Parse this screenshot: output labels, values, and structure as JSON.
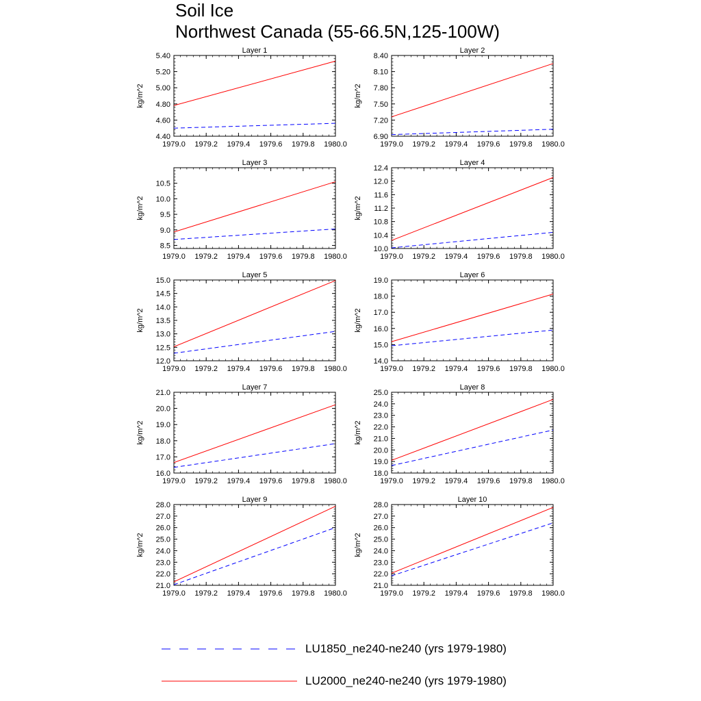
{
  "figure": {
    "title_line1": "Soil Ice",
    "title_line2": "Northwest Canada (55-66.5N,125-100W)"
  },
  "legend": [
    {
      "label": "LU1850_ne240-ne240 (yrs 1979-1980)",
      "color": "#0000ff",
      "dash": "dashed"
    },
    {
      "label": "LU2000_ne240-ne240 (yrs 1979-1980)",
      "color": "#ff0000",
      "dash": "solid"
    }
  ],
  "chart_data": [
    {
      "type": "line",
      "title": "Layer 1",
      "ylabel": "kg/m^2",
      "xlim": [
        1979.0,
        1980.0
      ],
      "ylim": [
        4.4,
        5.4
      ],
      "xticks": [
        "1979.0",
        "1979.2",
        "1979.4",
        "1979.6",
        "1979.8",
        "1980.0"
      ],
      "yticks": [
        "4.40",
        "4.60",
        "4.80",
        "5.00",
        "5.20",
        "5.40"
      ],
      "x": [
        1979.0,
        1980.0
      ],
      "series": [
        {
          "values": [
            4.5,
            4.56
          ],
          "color": "#0000ff",
          "dash": "dashed"
        },
        {
          "values": [
            4.78,
            5.33
          ],
          "color": "#ff0000",
          "dash": "solid"
        }
      ]
    },
    {
      "type": "line",
      "title": "Layer 2",
      "ylabel": "kg/m^2",
      "xlim": [
        1979.0,
        1980.0
      ],
      "ylim": [
        6.9,
        8.4
      ],
      "xticks": [
        "1979.0",
        "1979.2",
        "1979.4",
        "1979.6",
        "1979.8",
        "1980.0"
      ],
      "yticks": [
        "6.90",
        "7.20",
        "7.50",
        "7.80",
        "8.10",
        "8.40"
      ],
      "x": [
        1979.0,
        1980.0
      ],
      "series": [
        {
          "values": [
            6.93,
            7.03
          ],
          "color": "#0000ff",
          "dash": "dashed"
        },
        {
          "values": [
            7.26,
            8.25
          ],
          "color": "#ff0000",
          "dash": "solid"
        }
      ]
    },
    {
      "type": "line",
      "title": "Layer 3",
      "ylabel": "kg/m^2",
      "xlim": [
        1979.0,
        1980.0
      ],
      "ylim": [
        8.4,
        11.0
      ],
      "xticks": [
        "1979.0",
        "1979.2",
        "1979.4",
        "1979.6",
        "1979.8",
        "1980.0"
      ],
      "yticks": [
        "8.5",
        "9.0",
        "9.5",
        "10.0",
        "10.5"
      ],
      "x": [
        1979.0,
        1980.0
      ],
      "series": [
        {
          "values": [
            8.69,
            9.03
          ],
          "color": "#0000ff",
          "dash": "dashed"
        },
        {
          "values": [
            8.93,
            10.55
          ],
          "color": "#ff0000",
          "dash": "solid"
        }
      ]
    },
    {
      "type": "line",
      "title": "Layer 4",
      "ylabel": "kg/m^2",
      "xlim": [
        1979.0,
        1980.0
      ],
      "ylim": [
        10.0,
        12.4
      ],
      "xticks": [
        "1979.0",
        "1979.2",
        "1979.4",
        "1979.6",
        "1979.8",
        "1980.0"
      ],
      "yticks": [
        "10.0",
        "10.4",
        "10.8",
        "11.2",
        "11.6",
        "12.0",
        "12.4"
      ],
      "x": [
        1979.0,
        1980.0
      ],
      "series": [
        {
          "values": [
            10.02,
            10.48
          ],
          "color": "#0000ff",
          "dash": "dashed"
        },
        {
          "values": [
            10.24,
            12.11
          ],
          "color": "#ff0000",
          "dash": "solid"
        }
      ]
    },
    {
      "type": "line",
      "title": "Layer 5",
      "ylabel": "kg/m^2",
      "xlim": [
        1979.0,
        1980.0
      ],
      "ylim": [
        12.0,
        15.0
      ],
      "xticks": [
        "1979.0",
        "1979.2",
        "1979.4",
        "1979.6",
        "1979.8",
        "1980.0"
      ],
      "yticks": [
        "12.0",
        "12.5",
        "13.0",
        "13.5",
        "14.0",
        "14.5",
        "15.0"
      ],
      "x": [
        1979.0,
        1980.0
      ],
      "series": [
        {
          "values": [
            12.28,
            13.09
          ],
          "color": "#0000ff",
          "dash": "dashed"
        },
        {
          "values": [
            12.52,
            14.98
          ],
          "color": "#ff0000",
          "dash": "solid"
        }
      ]
    },
    {
      "type": "line",
      "title": "Layer 6",
      "ylabel": "kg/m^2",
      "xlim": [
        1979.0,
        1980.0
      ],
      "ylim": [
        14.0,
        19.0
      ],
      "xticks": [
        "1979.0",
        "1979.2",
        "1979.4",
        "1979.6",
        "1979.8",
        "1980.0"
      ],
      "yticks": [
        "14.0",
        "15.0",
        "16.0",
        "17.0",
        "18.0",
        "19.0"
      ],
      "x": [
        1979.0,
        1980.0
      ],
      "series": [
        {
          "values": [
            14.93,
            15.9
          ],
          "color": "#0000ff",
          "dash": "dashed"
        },
        {
          "values": [
            15.18,
            18.13
          ],
          "color": "#ff0000",
          "dash": "solid"
        }
      ]
    },
    {
      "type": "line",
      "title": "Layer 7",
      "ylabel": "kg/m^2",
      "xlim": [
        1979.0,
        1980.0
      ],
      "ylim": [
        16.0,
        21.0
      ],
      "xticks": [
        "1979.0",
        "1979.2",
        "1979.4",
        "1979.6",
        "1979.8",
        "1980.0"
      ],
      "yticks": [
        "16.0",
        "17.0",
        "18.0",
        "19.0",
        "20.0",
        "21.0"
      ],
      "x": [
        1979.0,
        1980.0
      ],
      "series": [
        {
          "values": [
            16.35,
            17.82
          ],
          "color": "#0000ff",
          "dash": "dashed"
        },
        {
          "values": [
            16.65,
            20.23
          ],
          "color": "#ff0000",
          "dash": "solid"
        }
      ]
    },
    {
      "type": "line",
      "title": "Layer 8",
      "ylabel": "kg/m^2",
      "xlim": [
        1979.0,
        1980.0
      ],
      "ylim": [
        18.0,
        25.0
      ],
      "xticks": [
        "1979.0",
        "1979.2",
        "1979.4",
        "1979.6",
        "1979.8",
        "1980.0"
      ],
      "yticks": [
        "18.0",
        "19.0",
        "20.0",
        "21.0",
        "22.0",
        "23.0",
        "24.0",
        "25.0"
      ],
      "x": [
        1979.0,
        1980.0
      ],
      "series": [
        {
          "values": [
            18.65,
            21.73
          ],
          "color": "#0000ff",
          "dash": "dashed"
        },
        {
          "values": [
            19.1,
            24.38
          ],
          "color": "#ff0000",
          "dash": "solid"
        }
      ]
    },
    {
      "type": "line",
      "title": "Layer 9",
      "ylabel": "kg/m^2",
      "xlim": [
        1979.0,
        1980.0
      ],
      "ylim": [
        21.0,
        28.0
      ],
      "xticks": [
        "1979.0",
        "1979.2",
        "1979.4",
        "1979.6",
        "1979.8",
        "1980.0"
      ],
      "yticks": [
        "21.0",
        "22.0",
        "23.0",
        "24.0",
        "25.0",
        "26.0",
        "27.0",
        "28.0"
      ],
      "x": [
        1979.0,
        1980.0
      ],
      "series": [
        {
          "values": [
            21.05,
            26.0
          ],
          "color": "#0000ff",
          "dash": "dashed"
        },
        {
          "values": [
            21.3,
            27.85
          ],
          "color": "#ff0000",
          "dash": "solid"
        }
      ]
    },
    {
      "type": "line",
      "title": "Layer 10",
      "ylabel": "kg/m^2",
      "xlim": [
        1979.0,
        1980.0
      ],
      "ylim": [
        21.0,
        28.0
      ],
      "xticks": [
        "1979.0",
        "1979.2",
        "1979.4",
        "1979.6",
        "1979.8",
        "1980.0"
      ],
      "yticks": [
        "21.0",
        "22.0",
        "23.0",
        "24.0",
        "25.0",
        "26.0",
        "27.0",
        "28.0"
      ],
      "x": [
        1979.0,
        1980.0
      ],
      "series": [
        {
          "values": [
            21.82,
            26.41
          ],
          "color": "#0000ff",
          "dash": "dashed"
        },
        {
          "values": [
            22.05,
            27.75
          ],
          "color": "#ff0000",
          "dash": "solid"
        }
      ]
    }
  ]
}
